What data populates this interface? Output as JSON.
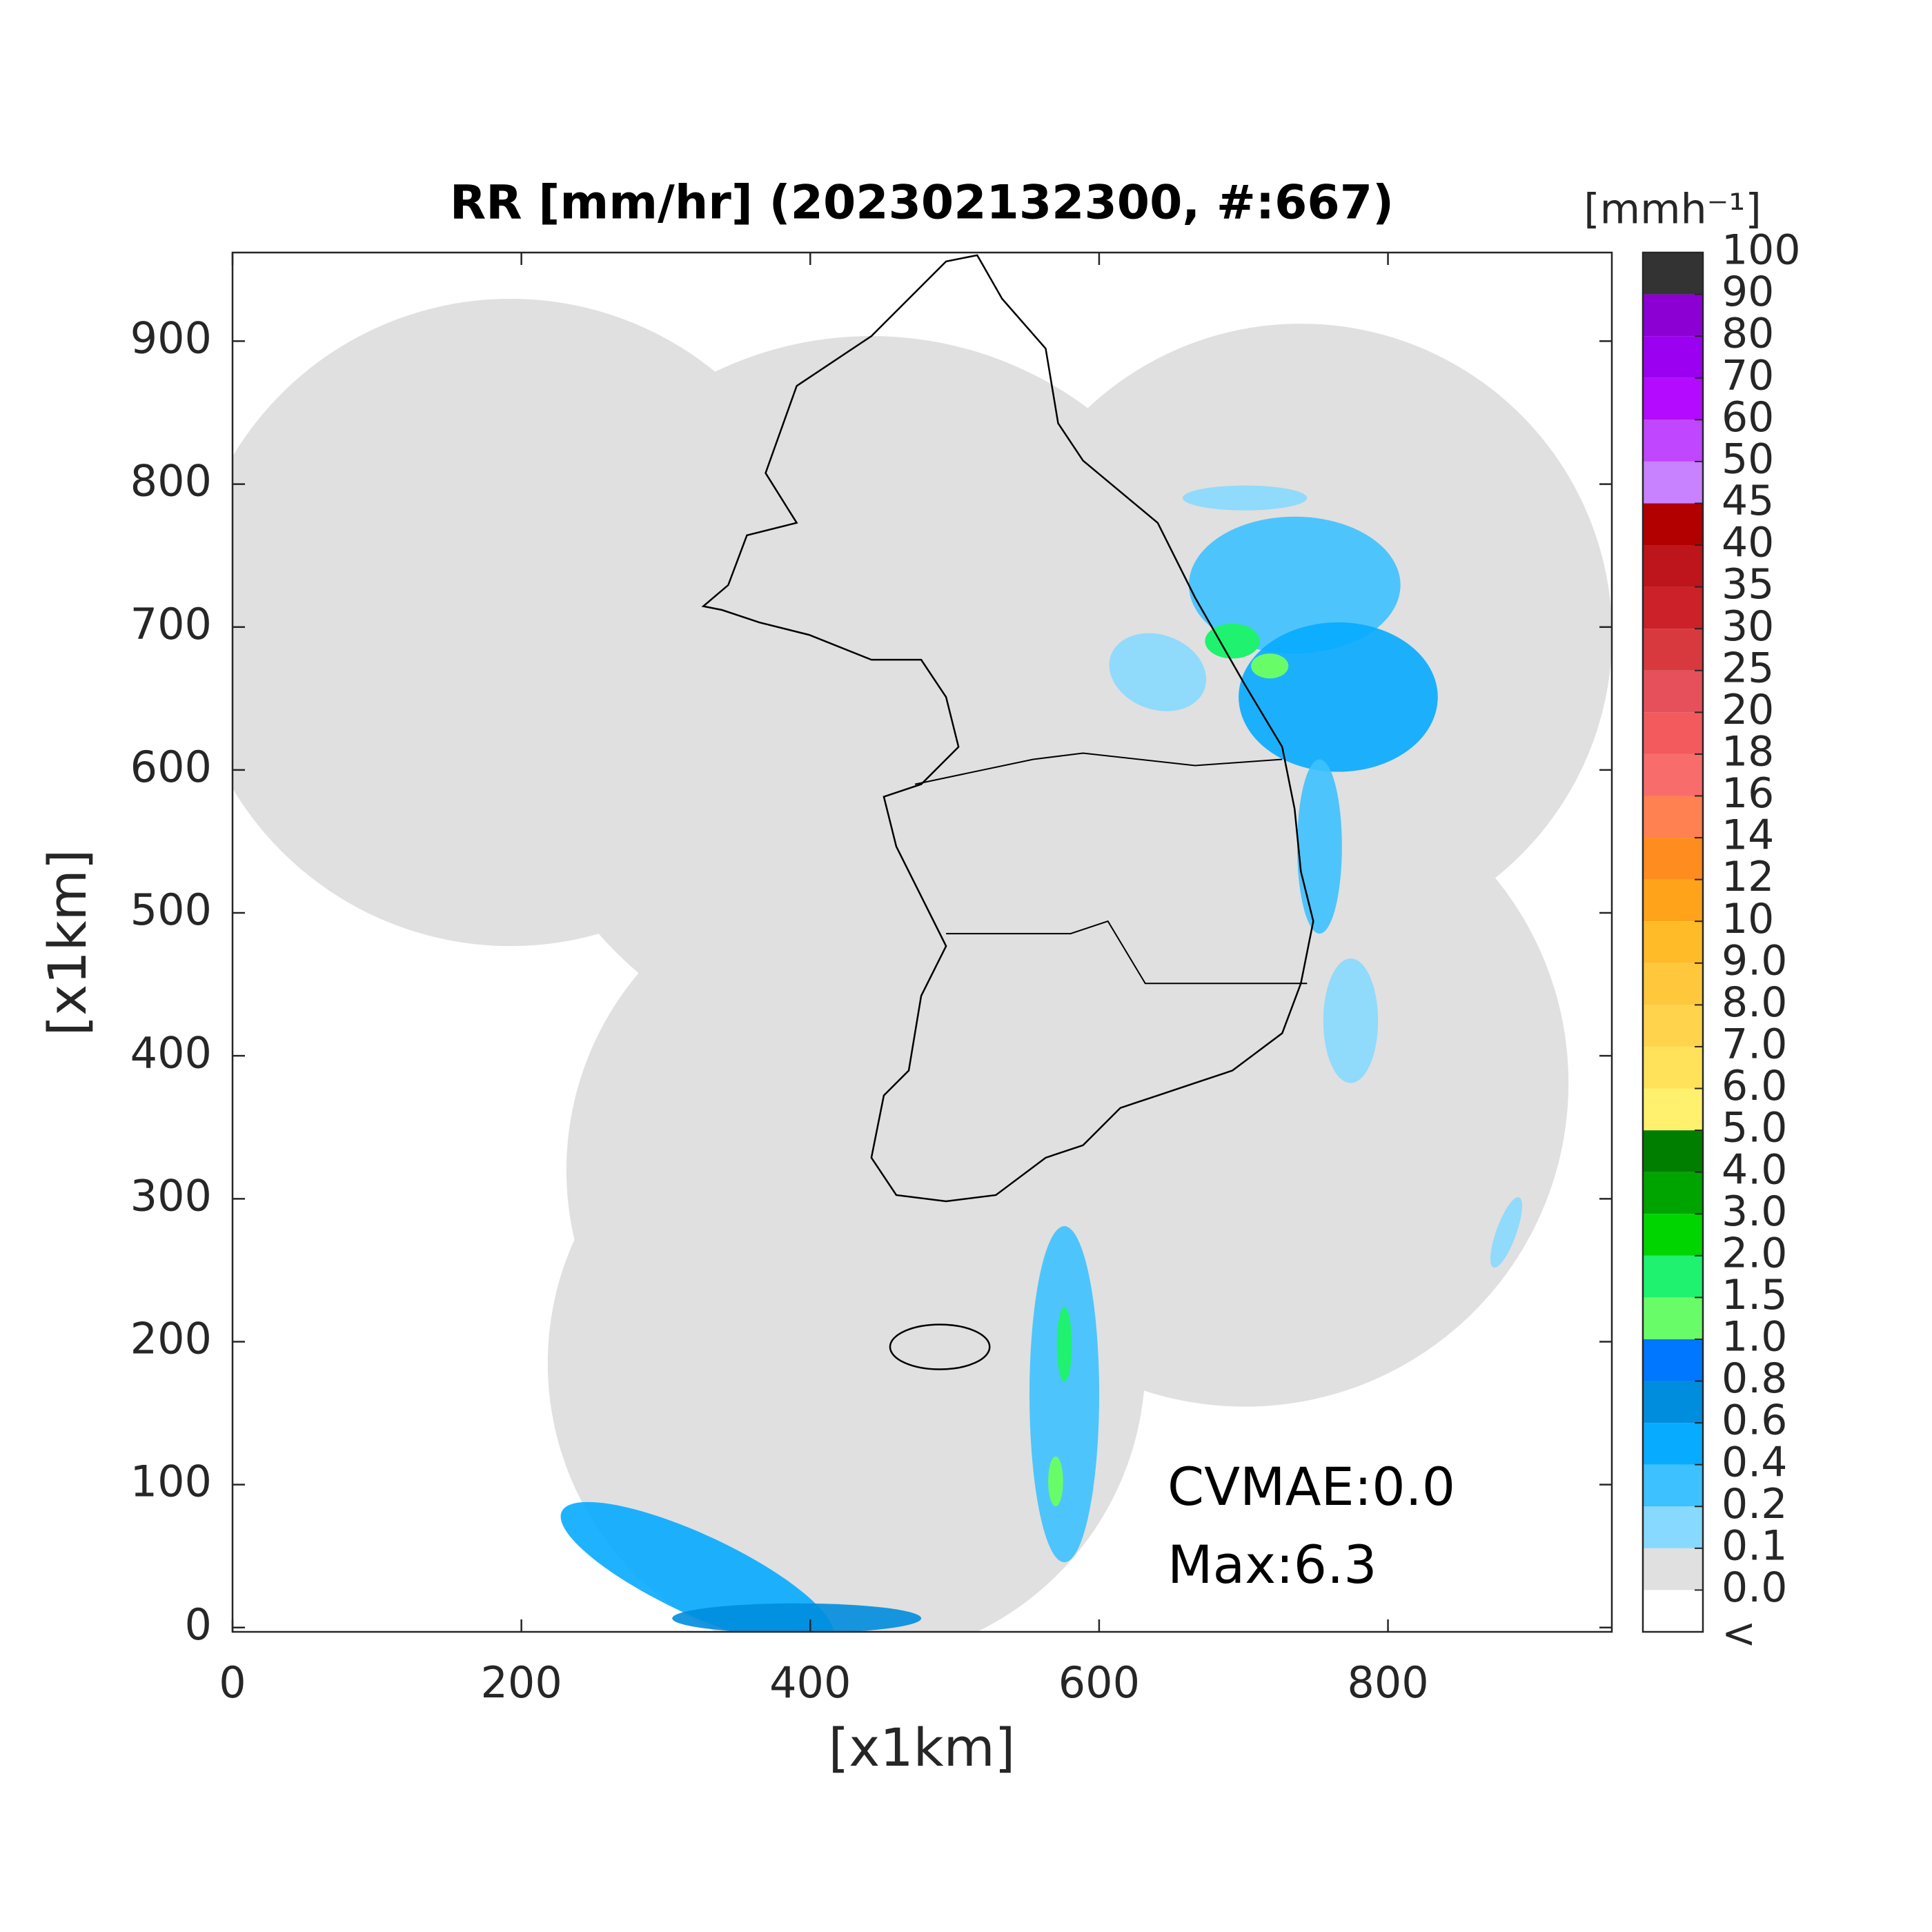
{
  "chart_data": {
    "type": "map",
    "title": "RR [mm/hr] (202302132300, #:667)",
    "xlabel": "[x1km]",
    "ylabel": "[x1km]",
    "xlim": [
      0,
      955
    ],
    "ylim": [
      -3,
      962
    ],
    "xticks": [
      0,
      200,
      400,
      600,
      800
    ],
    "yticks": [
      0,
      100,
      200,
      300,
      400,
      500,
      600,
      700,
      800,
      900
    ],
    "colorbar": {
      "label": "[mmh⁻¹]",
      "under_label": "<",
      "levels": [
        {
          "value": 0,
          "label": "0.0"
        },
        0.1,
        0.2,
        0.4,
        0.6,
        0.8,
        {
          "value": 1,
          "label": "1.0"
        },
        1.5,
        {
          "value": 2,
          "label": "2.0"
        },
        {
          "value": 3,
          "label": "3.0"
        },
        {
          "value": 4,
          "label": "4.0"
        },
        {
          "value": 5,
          "label": "5.0"
        },
        {
          "value": 6,
          "label": "6.0"
        },
        {
          "value": 7,
          "label": "7.0"
        },
        {
          "value": 8,
          "label": "8.0"
        },
        {
          "value": 9,
          "label": "9.0"
        },
        10,
        12,
        14,
        16,
        18,
        20,
        25,
        30,
        35,
        40,
        45,
        50,
        60,
        70,
        80,
        90,
        100
      ],
      "colors": [
        "#ffffff",
        "#e0e0e0",
        "#87d9ff",
        "#3ec1ff",
        "#07abff",
        "#008dde",
        "#0077ff",
        "#69fc69",
        "#1ef26e",
        "#00d500",
        "#00a400",
        "#007e00",
        "#fff06e",
        "#ffe25a",
        "#ffd34b",
        "#ffc83c",
        "#ffbc28",
        "#ffa31b",
        "#ff8c1e",
        "#ff8050",
        "#f96c6c",
        "#f25a5e",
        "#e6505a",
        "#d8393f",
        "#cc2129",
        "#be141c",
        "#b20000",
        "#c882ff",
        "#c046ff",
        "#b40aff",
        "#9b00f0",
        "#8c00d4",
        "#333333"
      ]
    },
    "annotations": [
      "CVMAE:0.0",
      "Max:6.3"
    ]
  }
}
